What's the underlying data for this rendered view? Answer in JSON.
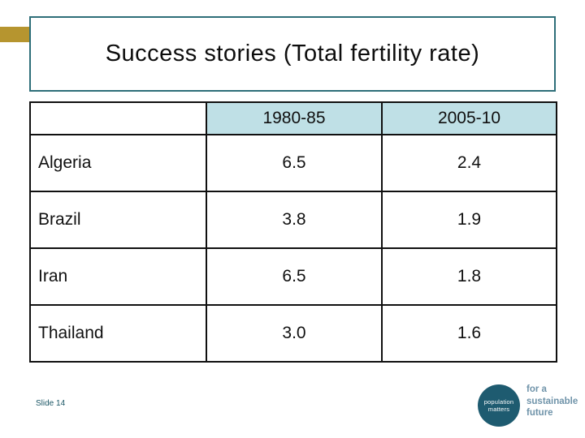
{
  "slide": {
    "title": "Success stories (Total fertility rate)",
    "slide_number_label": "Slide 14"
  },
  "table": {
    "columns": [
      "",
      "1980-85",
      "2005-10"
    ],
    "rows": [
      {
        "country": "Algeria",
        "values": [
          "6.5",
          "2.4"
        ]
      },
      {
        "country": "Brazil",
        "values": [
          "3.8",
          "1.9"
        ]
      },
      {
        "country": "Iran",
        "values": [
          "6.5",
          "1.8"
        ]
      },
      {
        "country": "Thailand",
        "values": [
          "3.0",
          "1.6"
        ]
      }
    ]
  },
  "chart_data": {
    "type": "table",
    "title": "Success stories (Total fertility rate)",
    "categories": [
      "Algeria",
      "Brazil",
      "Iran",
      "Thailand"
    ],
    "series": [
      {
        "name": "1980-85",
        "values": [
          6.5,
          3.8,
          6.5,
          3.0
        ]
      },
      {
        "name": "2005-10",
        "values": [
          2.4,
          1.9,
          1.8,
          1.6
        ]
      }
    ]
  },
  "logo": {
    "circle_line1": "population",
    "circle_line2": "matters",
    "tagline_line1": "for a",
    "tagline_line2": "sustainable",
    "tagline_line3": "future"
  },
  "colors": {
    "accent_teal_border": "#2e6e79",
    "table_header_fill": "#bfe0e6",
    "gold_arrow": "#b6952f",
    "logo_circle": "#1e5b70",
    "tagline_text": "#6f93a9",
    "slide_number_text": "#1c5766"
  }
}
